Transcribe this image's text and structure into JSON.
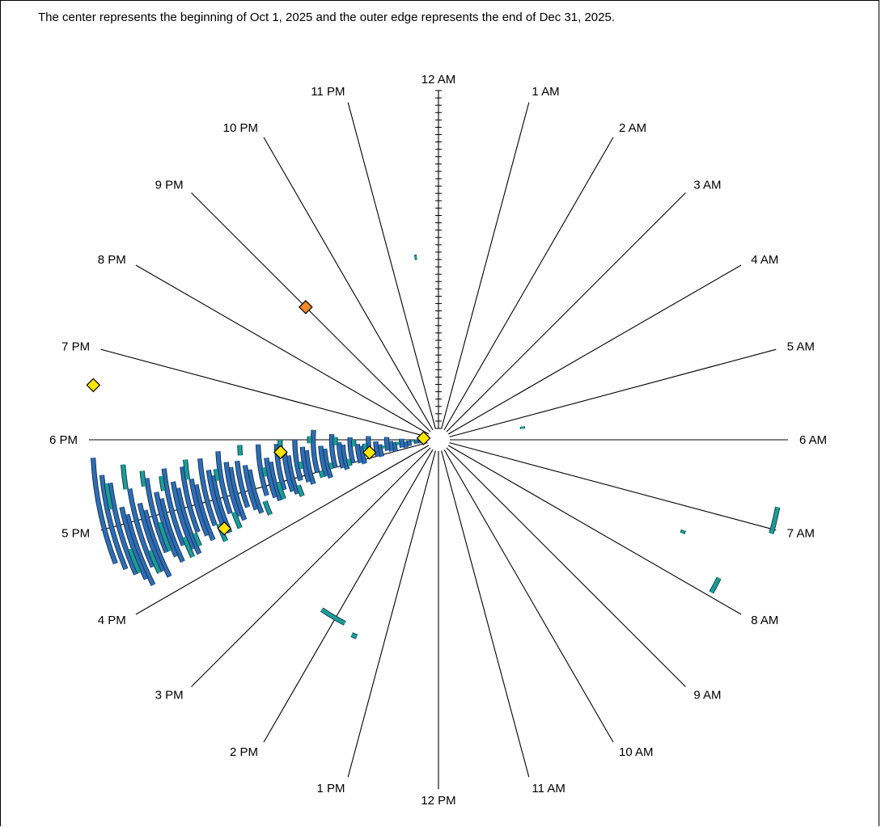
{
  "caption": "The center represents the beginning of Oct 1, 2025 and the outer edge represents the end of Dec 31, 2025.",
  "chart_data": {
    "type": "radial-clock",
    "radial_range": [
      "Oct 1, 2025",
      "Dec 31, 2025"
    ],
    "hour_labels": [
      "12 AM",
      "1 AM",
      "2 AM",
      "3 AM",
      "4 AM",
      "5 AM",
      "6 AM",
      "7 AM",
      "8 AM",
      "9 AM",
      "10 AM",
      "11 AM",
      "12 PM",
      "1 PM",
      "2 PM",
      "3 PM",
      "4 PM",
      "5 PM",
      "6 PM",
      "7 PM",
      "8 PM",
      "9 PM",
      "10 PM",
      "11 PM"
    ],
    "colors": {
      "blue": "#2f6db5",
      "teal": "#1a9e96",
      "yellow": "#ffe600",
      "orange": "#f08a2a",
      "axis": "#000000"
    },
    "series": [
      {
        "color": "blue",
        "arcs": [
          [
            1,
            17.4,
            18.1
          ],
          [
            2,
            17.3,
            18.0
          ],
          [
            3,
            17.35,
            18.05
          ],
          [
            5,
            17.2,
            17.9
          ],
          [
            6,
            17.1,
            17.8
          ],
          [
            7,
            17.2,
            18.1
          ],
          [
            9,
            17.0,
            17.8
          ],
          [
            10,
            17.1,
            17.9
          ],
          [
            11,
            17.2,
            18.2
          ],
          [
            13,
            16.9,
            17.7
          ],
          [
            14,
            17.0,
            17.9
          ],
          [
            16,
            17.1,
            18.2
          ],
          [
            18,
            16.8,
            17.7
          ],
          [
            19,
            16.9,
            17.8
          ],
          [
            21,
            17.0,
            18.1
          ],
          [
            23,
            16.8,
            17.8
          ],
          [
            24,
            16.9,
            17.9
          ],
          [
            26,
            17.0,
            18.2
          ],
          [
            28,
            16.7,
            17.7
          ],
          [
            29,
            16.8,
            17.8
          ],
          [
            31,
            17.0,
            18.3
          ],
          [
            33,
            16.7,
            17.7
          ],
          [
            34,
            16.8,
            17.8
          ],
          [
            36,
            16.9,
            18.0
          ],
          [
            38,
            16.6,
            17.6
          ],
          [
            39,
            16.7,
            17.7
          ],
          [
            41,
            16.8,
            17.9
          ],
          [
            43,
            16.6,
            17.5
          ],
          [
            44,
            16.7,
            17.6
          ],
          [
            46,
            16.8,
            17.9
          ],
          [
            49,
            16.5,
            17.4
          ],
          [
            50,
            16.6,
            17.5
          ],
          [
            52,
            16.7,
            17.6
          ],
          [
            54,
            16.5,
            17.5
          ],
          [
            55,
            16.6,
            17.6
          ],
          [
            57,
            16.7,
            17.8
          ],
          [
            59,
            16.4,
            17.4
          ],
          [
            60,
            16.5,
            17.5
          ],
          [
            62,
            16.6,
            17.7
          ],
          [
            64,
            16.4,
            17.3
          ],
          [
            65,
            16.5,
            17.4
          ],
          [
            67,
            16.6,
            17.6
          ],
          [
            69,
            16.3,
            17.3
          ],
          [
            70,
            16.4,
            17.4
          ],
          [
            72,
            16.5,
            17.6
          ],
          [
            74,
            16.3,
            17.2
          ],
          [
            75,
            16.4,
            17.3
          ],
          [
            77,
            16.5,
            17.5
          ],
          [
            79,
            16.2,
            17.1
          ],
          [
            80,
            16.3,
            17.2
          ],
          [
            82,
            16.4,
            17.4
          ],
          [
            84,
            16.2,
            17.1
          ],
          [
            85,
            16.3,
            17.2
          ],
          [
            87,
            16.4,
            17.5
          ],
          [
            89,
            16.5,
            17.6
          ],
          [
            91,
            16.6,
            17.8
          ]
        ]
      },
      {
        "color": "teal",
        "arcs": [
          [
            4,
            17.7,
            18.0
          ],
          [
            8,
            17.5,
            17.8
          ],
          [
            12,
            17.4,
            17.6
          ],
          [
            17,
            17.5,
            17.8
          ],
          [
            20,
            17.7,
            18.0
          ],
          [
            22,
            16.9,
            17.2
          ],
          [
            25,
            17.8,
            18.1
          ],
          [
            27,
            17.0,
            17.2
          ],
          [
            30,
            16.8,
            17.0
          ],
          [
            32,
            17.9,
            18.1
          ],
          [
            35,
            17.2,
            17.4
          ],
          [
            37,
            16.5,
            16.8
          ],
          [
            40,
            17.8,
            18.0
          ],
          [
            42,
            16.6,
            17.0
          ],
          [
            45,
            17.2,
            17.4
          ],
          [
            47,
            16.4,
            16.7
          ],
          [
            51,
            17.7,
            17.9
          ],
          [
            56,
            16.4,
            16.7
          ],
          [
            58,
            17.3,
            17.5
          ],
          [
            61,
            16.3,
            16.6
          ],
          [
            66,
            17.4,
            17.7
          ],
          [
            68,
            16.4,
            16.6
          ],
          [
            71,
            16.3,
            16.6
          ],
          [
            73,
            17.3,
            17.5
          ],
          [
            76,
            16.5,
            16.9
          ],
          [
            78,
            17.4,
            17.6
          ],
          [
            81,
            16.3,
            16.6
          ],
          [
            83,
            17.4,
            17.7
          ],
          [
            86,
            16.4,
            16.7
          ],
          [
            88,
            17.2,
            17.5
          ],
          [
            47,
            23.5,
            23.55
          ],
          [
            53,
            13.8,
            14.3
          ],
          [
            55,
            13.5,
            13.6
          ],
          [
            20,
            5.4,
            5.5
          ],
          [
            68,
            7.35,
            7.4
          ],
          [
            91,
            6.75,
            7.05
          ],
          [
            82,
            7.75,
            7.95
          ]
        ]
      }
    ],
    "markers": [
      {
        "shape": "diamond",
        "color": "yellow",
        "day": 1,
        "hour": 18.4
      },
      {
        "shape": "diamond",
        "color": "yellow",
        "day": 16,
        "hour": 17.3
      },
      {
        "shape": "diamond",
        "color": "yellow",
        "day": 40,
        "hour": 17.7
      },
      {
        "shape": "diamond",
        "color": "yellow",
        "day": 60,
        "hour": 16.5
      },
      {
        "shape": "diamond",
        "color": "yellow",
        "day": 92,
        "hour": 18.6
      },
      {
        "shape": "diamond",
        "color": "orange",
        "day": 48,
        "hour": 21.0
      }
    ]
  }
}
